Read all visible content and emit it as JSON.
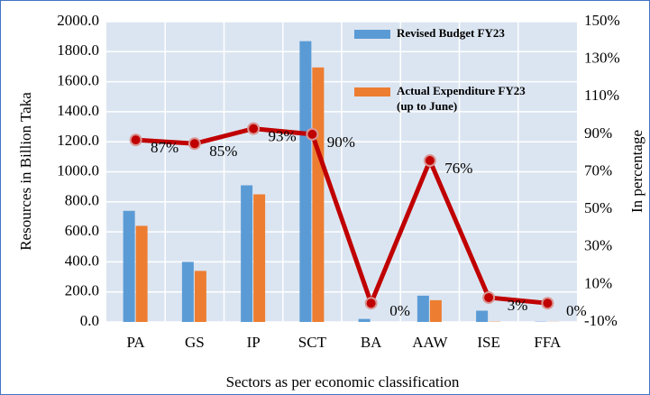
{
  "chart_data": {
    "type": "bar",
    "categories": [
      "PA",
      "GS",
      "IP",
      "SCT",
      "BA",
      "AAW",
      "ISE",
      "FFA"
    ],
    "series": [
      {
        "name": "Revised Budget FY23",
        "color": "#5b9bd5",
        "values": [
          740,
          400,
          910,
          1870,
          20,
          175,
          75,
          2
        ]
      },
      {
        "name": "Actual Expenditure FY23 (up to June)",
        "color": "#ed7d31",
        "values": [
          640,
          340,
          850,
          1695,
          0,
          145,
          2,
          1
        ]
      },
      {
        "type": "line",
        "axis": "y2",
        "color": "#c00000",
        "values": [
          87,
          85,
          93,
          90,
          0,
          76,
          3,
          0
        ],
        "value_labels": [
          "87%",
          "85%",
          "93%",
          "90%",
          "0%",
          "76%",
          "3%",
          "0%"
        ]
      }
    ],
    "ylabel": "Resources in Billion Taka",
    "y2label": "In percentage",
    "xlabel": "Sectors as per economic classification",
    "ylim": [
      0,
      2000
    ],
    "yticks": [
      {
        "value": 0,
        "label": "0.0"
      },
      {
        "value": 200,
        "label": "200.0"
      },
      {
        "value": 400,
        "label": "400.0"
      },
      {
        "value": 600,
        "label": "600.0"
      },
      {
        "value": 800,
        "label": "800.0"
      },
      {
        "value": 1000,
        "label": "1000.0"
      },
      {
        "value": 1200,
        "label": "1200.0"
      },
      {
        "value": 1400,
        "label": "1400.0"
      },
      {
        "value": 1600,
        "label": "1600.0"
      },
      {
        "value": 1800,
        "label": "1800.0"
      },
      {
        "value": 2000,
        "label": "2000.0"
      }
    ],
    "y2lim": [
      -10,
      150
    ],
    "y2ticks": [
      {
        "value": -10,
        "label": "-10%"
      },
      {
        "value": 10,
        "label": "10%"
      },
      {
        "value": 30,
        "label": "30%"
      },
      {
        "value": 50,
        "label": "50%"
      },
      {
        "value": 70,
        "label": "70%"
      },
      {
        "value": 90,
        "label": "90%"
      },
      {
        "value": 110,
        "label": "110%"
      },
      {
        "value": 130,
        "label": "130%"
      },
      {
        "value": 150,
        "label": "150%"
      }
    ],
    "grid": true
  }
}
